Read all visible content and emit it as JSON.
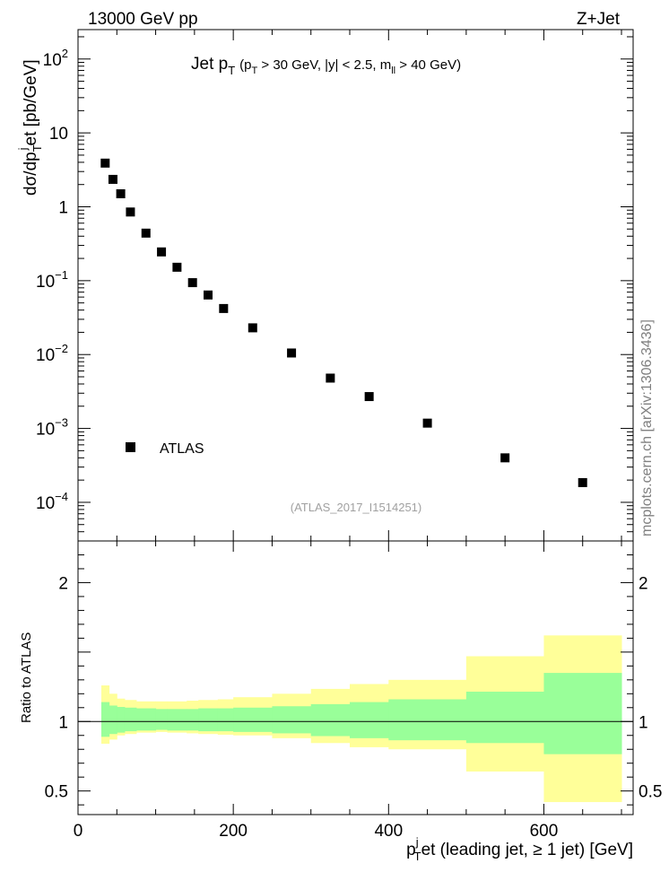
{
  "header": {
    "energy_label": "13000 GeV pp",
    "process_label": "Z+Jet",
    "side_credit": "mcplots.cern.ch [arXiv:1306.3436]"
  },
  "top_plot": {
    "title_main": "Jet p",
    "title_main_sub": "T",
    "title_cuts_open": "(p",
    "title_cuts_sub": "T",
    "title_cuts_rest": " > 30 GeV, |y| < 2.5, m",
    "title_cuts_sub2": "ll",
    "title_cuts_end": " > 40 GeV)",
    "ylabel_text": "dσ/dp",
    "ylabel_sub": "T",
    "ylabel_sup": "j",
    "ylabel_rest": "et [pb/GeV]",
    "legend_label": "ATLAS",
    "analysis_tag": "(ATLAS_2017_I1514251)"
  },
  "bottom_plot": {
    "ylabel": "Ratio to ATLAS"
  },
  "x_axis": {
    "label_p": "p",
    "label_sup": "j",
    "label_sub": "T",
    "label_rest": "et (leading jet, ≥ 1 jet) [GeV]",
    "tick_labels": [
      "0",
      "200",
      "400",
      "600"
    ]
  },
  "colors": {
    "marker": "#000000",
    "band_inner": "#99ff99",
    "band_outer": "#ffff99",
    "ref_line": "#000000",
    "tag_gray": "#a0a0a0"
  },
  "chart_data": [
    {
      "type": "scatter",
      "title": "Jet pT (pT > 30 GeV, |y| < 2.5, mll > 40 GeV)",
      "xlabel": "pTjet (leading jet, ≥ 1 jet) [GeV]",
      "ylabel": "dσ/dpTjet [pb/GeV]",
      "xlim": [
        0,
        715
      ],
      "ylim": [
        3e-05,
        250
      ],
      "yscale": "log",
      "y_tick_labels": [
        {
          "base": "10",
          "exp": "2",
          "value": 100
        },
        {
          "base": "10",
          "exp": "",
          "value": 10
        },
        {
          "base": "1",
          "exp": "",
          "value": 1
        },
        {
          "base": "10",
          "exp": "−1",
          "value": 0.1
        },
        {
          "base": "10",
          "exp": "−2",
          "value": 0.01
        },
        {
          "base": "10",
          "exp": "−3",
          "value": 0.001
        },
        {
          "base": "10",
          "exp": "−4",
          "value": 0.0001
        }
      ],
      "series": [
        {
          "name": "ATLAS",
          "x": [
            35,
            45,
            55,
            67.5,
            87.5,
            107.5,
            127.5,
            147.5,
            167.5,
            187.5,
            225,
            275,
            325,
            375,
            450,
            550,
            650
          ],
          "y": [
            3.9,
            2.35,
            1.5,
            0.85,
            0.44,
            0.245,
            0.152,
            0.094,
            0.064,
            0.042,
            0.023,
            0.0105,
            0.0048,
            0.0027,
            0.00118,
            0.0004,
            0.000185
          ]
        }
      ]
    },
    {
      "type": "area",
      "title": "Ratio to ATLAS",
      "ylabel": "Ratio to ATLAS",
      "xlim": [
        0,
        715
      ],
      "ylim": [
        0.33,
        2.3
      ],
      "y_ticks": [
        0.5,
        1,
        2
      ],
      "y_tick_labels": [
        "0.5",
        "1",
        "2"
      ],
      "bin_edges": [
        30,
        40,
        50,
        60,
        75,
        100,
        115,
        140,
        155,
        180,
        200,
        250,
        300,
        350,
        400,
        500,
        600,
        700
      ],
      "series": [
        {
          "name": "inner (green)",
          "low": [
            0.89,
            0.91,
            0.92,
            0.93,
            0.935,
            0.94,
            0.935,
            0.935,
            0.93,
            0.93,
            0.925,
            0.915,
            0.895,
            0.88,
            0.865,
            0.845,
            0.765
          ],
          "high": [
            1.14,
            1.115,
            1.105,
            1.1,
            1.095,
            1.09,
            1.09,
            1.09,
            1.095,
            1.095,
            1.1,
            1.11,
            1.125,
            1.14,
            1.16,
            1.215,
            1.35
          ]
        },
        {
          "name": "outer (yellow)",
          "low": [
            0.84,
            0.87,
            0.9,
            0.91,
            0.92,
            0.925,
            0.92,
            0.915,
            0.91,
            0.905,
            0.9,
            0.88,
            0.845,
            0.815,
            0.8,
            0.64,
            0.42
          ],
          "high": [
            1.26,
            1.2,
            1.165,
            1.155,
            1.145,
            1.145,
            1.145,
            1.15,
            1.155,
            1.16,
            1.175,
            1.2,
            1.235,
            1.27,
            1.3,
            1.47,
            1.62
          ]
        }
      ]
    }
  ]
}
